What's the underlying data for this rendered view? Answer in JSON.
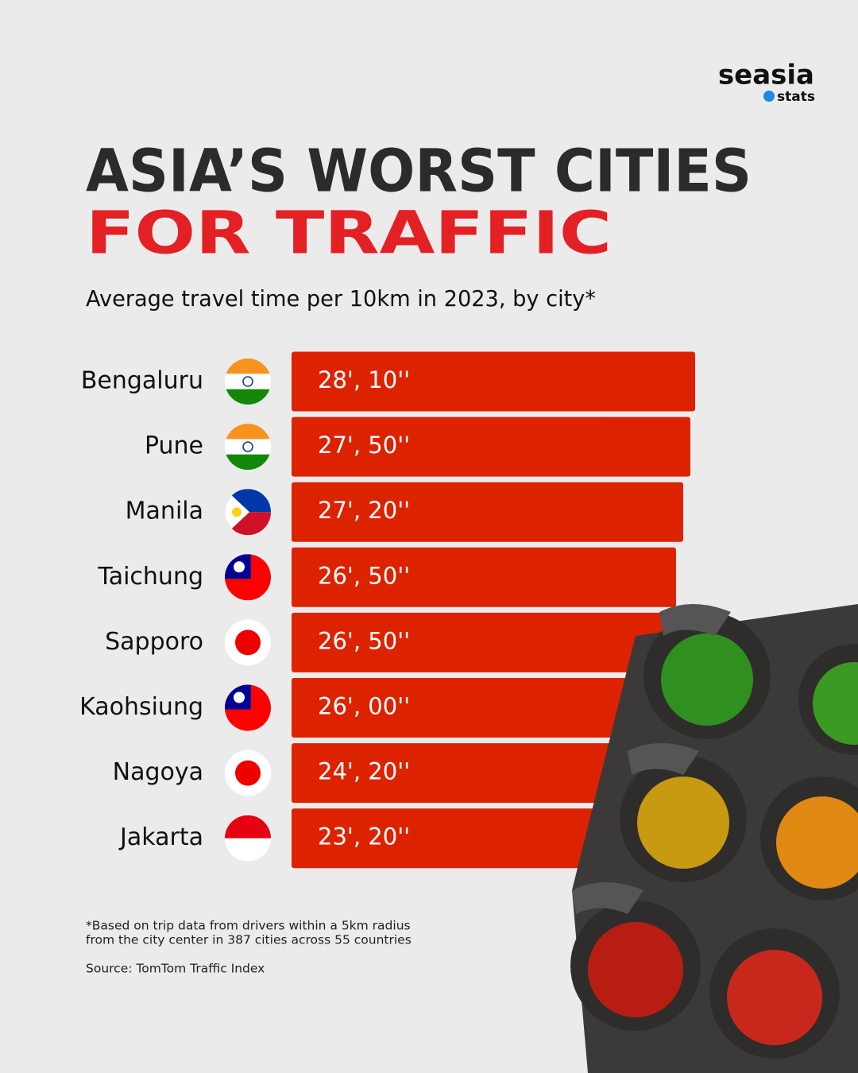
{
  "chart_data": {
    "type": "bar",
    "orientation": "horizontal",
    "brand": "seasia",
    "brand_sub": "stats",
    "title": "ASIA’S WORST CITIES",
    "title_line2": "FOR TRAFFIC",
    "subtitle": "Average travel time per 10km in 2023, by city*",
    "categories": [
      "Bengaluru",
      "Pune",
      "Manila",
      "Taichung",
      "Sapporo",
      "Kaohsiung",
      "Nagoya",
      "Jakarta"
    ],
    "values": [
      1690,
      1670,
      1640,
      1610,
      1610,
      1560,
      1460,
      1400
    ],
    "value_labels": [
      "28', 10''",
      "27', 50''",
      "27', 20''",
      "26', 50''",
      "26', 50''",
      "26', 00''",
      "24', 20''",
      "23', 20''"
    ],
    "color": "#dd2200",
    "footnote": [
      "*Based on trip data from drivers within a 5km radius",
      "from the city center in 387 cities across 55 countries"
    ],
    "source": "Source: TomTom Traffic Index"
  }
}
